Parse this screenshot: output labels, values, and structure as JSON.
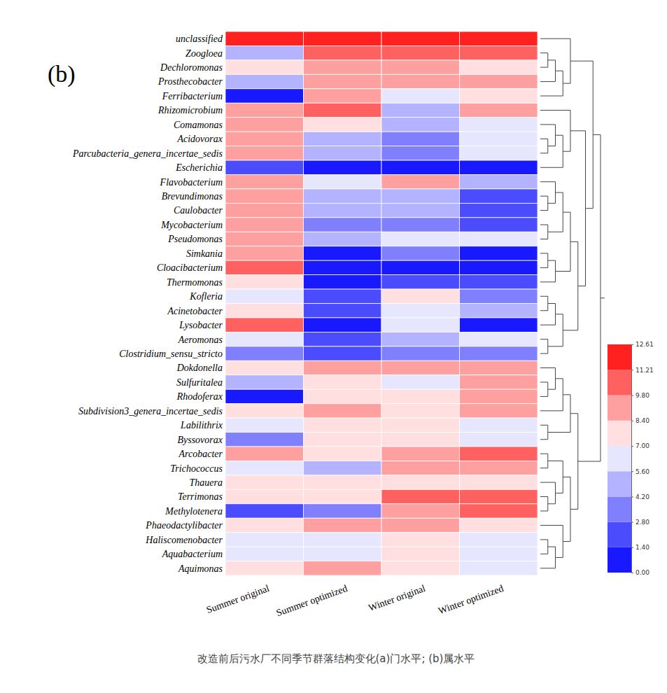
{
  "chart_data": {
    "type": "heatmap",
    "title": "(b)",
    "caption": "改造前后污水厂不同季节群落结构变化(a)门水平; (b)属水平",
    "x": [
      "Summer original",
      "Summer optimized",
      "Winter original",
      "Winter optimized"
    ],
    "y": [
      "unclassified",
      "Zoogloea",
      "Dechloromonas",
      "Prosthecobacter",
      "Ferribacterium",
      "Rhizomicrobium",
      "Comamonas",
      "Acidovorax",
      "Parcubacteria_genera_incertae_sedis",
      "Escherichia",
      "Flavobacterium",
      "Brevundimonas",
      "Caulobacter",
      "Mycobacterium",
      "Pseudomonas",
      "Simkania",
      "Cloacibacterium",
      "Thermomonas",
      "Kofleria",
      "Acinetobacter",
      "Lysobacter",
      "Aeromonas",
      "Clostridium_sensu_stricto",
      "Dokdonella",
      "Sulfuritalea",
      "Rhodoferax",
      "Subdivision3_genera_incertae_sedis",
      "Labilithrix",
      "Byssovorax",
      "Arcobacter",
      "Trichococcus",
      "Thauera",
      "Terrimonas",
      "Methylotenera",
      "Phaeodactylibacter",
      "Haliscomenobacter",
      "Aquabacterium",
      "Aquimonas"
    ],
    "values": [
      [
        12.6,
        12.5,
        12.5,
        12.5
      ],
      [
        4.8,
        11.0,
        10.0,
        10.0
      ],
      [
        7.5,
        9.0,
        8.8,
        7.6
      ],
      [
        4.6,
        8.8,
        8.6,
        8.8
      ],
      [
        1.0,
        8.8,
        6.0,
        7.6
      ],
      [
        8.7,
        10.0,
        4.5,
        8.6
      ],
      [
        8.6,
        7.5,
        4.4,
        6.0
      ],
      [
        9.5,
        4.8,
        3.0,
        5.8
      ],
      [
        8.8,
        4.4,
        3.2,
        6.0
      ],
      [
        2.5,
        1.2,
        1.0,
        0.5
      ],
      [
        9.6,
        6.2,
        8.6,
        4.5
      ],
      [
        8.8,
        4.6,
        4.4,
        2.0
      ],
      [
        8.8,
        4.6,
        4.5,
        2.0
      ],
      [
        8.8,
        3.0,
        3.2,
        2.6
      ],
      [
        8.8,
        4.5,
        6.2,
        6.0
      ],
      [
        8.8,
        0.5,
        2.8,
        0.5
      ],
      [
        9.8,
        1.0,
        0.8,
        1.2
      ],
      [
        7.4,
        0.5,
        1.6,
        1.5
      ],
      [
        6.2,
        2.6,
        7.2,
        4.0
      ],
      [
        7.6,
        2.4,
        6.0,
        4.2
      ],
      [
        9.8,
        0.4,
        6.0,
        0.3
      ],
      [
        6.0,
        2.4,
        4.2,
        5.8
      ],
      [
        3.0,
        2.0,
        3.2,
        3.4
      ],
      [
        7.6,
        8.8,
        8.6,
        8.6
      ],
      [
        4.4,
        7.4,
        6.0,
        8.6
      ],
      [
        0.5,
        7.6,
        7.4,
        8.6
      ],
      [
        7.5,
        8.6,
        7.6,
        8.6
      ],
      [
        6.0,
        7.6,
        7.4,
        6.2
      ],
      [
        3.0,
        7.4,
        7.4,
        6.2
      ],
      [
        8.6,
        7.4,
        9.0,
        10.2
      ],
      [
        6.0,
        4.4,
        8.6,
        8.8
      ],
      [
        7.6,
        7.6,
        7.6,
        8.0
      ],
      [
        7.6,
        7.6,
        10.0,
        10.2
      ],
      [
        1.6,
        3.0,
        8.8,
        10.0
      ],
      [
        7.6,
        8.6,
        8.6,
        7.6
      ],
      [
        6.2,
        6.2,
        7.2,
        6.2
      ],
      [
        6.2,
        6.2,
        7.2,
        6.4
      ],
      [
        7.6,
        8.6,
        7.4,
        6.8
      ]
    ],
    "colorbar": {
      "range": [
        0,
        12.61
      ],
      "ticks": [
        {
          "value": 0,
          "label": "0.00"
        },
        {
          "value": 1.4,
          "label": "1.40"
        },
        {
          "value": 2.8,
          "label": "2.80"
        },
        {
          "value": 4.2,
          "label": "4.20"
        },
        {
          "value": 5.6,
          "label": "5.60"
        },
        {
          "value": 7,
          "label": "7.00"
        },
        {
          "value": 8.4,
          "label": "8.40"
        },
        {
          "value": 9.8,
          "label": "9.80"
        },
        {
          "value": 11.21,
          "label": "11.21"
        },
        {
          "value": 12.61,
          "label": "12.61"
        }
      ]
    },
    "row_dendrogram": [
      [
        [
          "unclassified",
          [
            [
              [
                "Zoogloea",
                "Dechloromonas"
              ],
              "Prosthecobacter"
            ],
            "Ferribacterium"
          ]
        ],
        [
          [
            "Rhizomicrobium",
            [
              [
                "Comamonas",
                [
                  "Acidovorax",
                  "Parcubacteria_genera_incertae_sedis"
                ]
              ],
              "Escherichia"
            ]
          ],
          [
            [
              [
                [
                  "Flavobacterium",
                  [
                    "Brevundimonas",
                    "Caulobacter"
                  ]
                ],
                [
                  "Mycobacterium",
                  "Pseudomonas"
                ]
              ],
              [
                [
                  "Simkania",
                  "Cloacibacterium"
                ],
                "Thermomonas"
              ]
            ],
            [
              [
                [
                  "Kofleria",
                  "Acinetobacter"
                ],
                "Lysobacter"
              ],
              [
                "Aeromonas",
                "Clostridium_sensu_stricto"
              ]
            ]
          ]
        ]
      ],
      [
        [
          [
            [
              "Dokdonella",
              [
                "Sulfuritalea",
                "Rhodoferax"
              ]
            ],
            "Subdivision3_genera_incertae_sedis"
          ],
          [
            "Labilithrix",
            "Byssovorax"
          ]
        ],
        [
          [
            [
              "Arcobacter",
              "Trichococcus"
            ],
            [
              "Thauera",
              [
                "Terrimonas",
                "Methylotenera"
              ]
            ]
          ],
          [
            "Phaeodactylibacter",
            [
              [
                "Haliscomenobacter",
                "Aquabacterium"
              ],
              "Aquimonas"
            ]
          ]
        ]
      ]
    ]
  }
}
